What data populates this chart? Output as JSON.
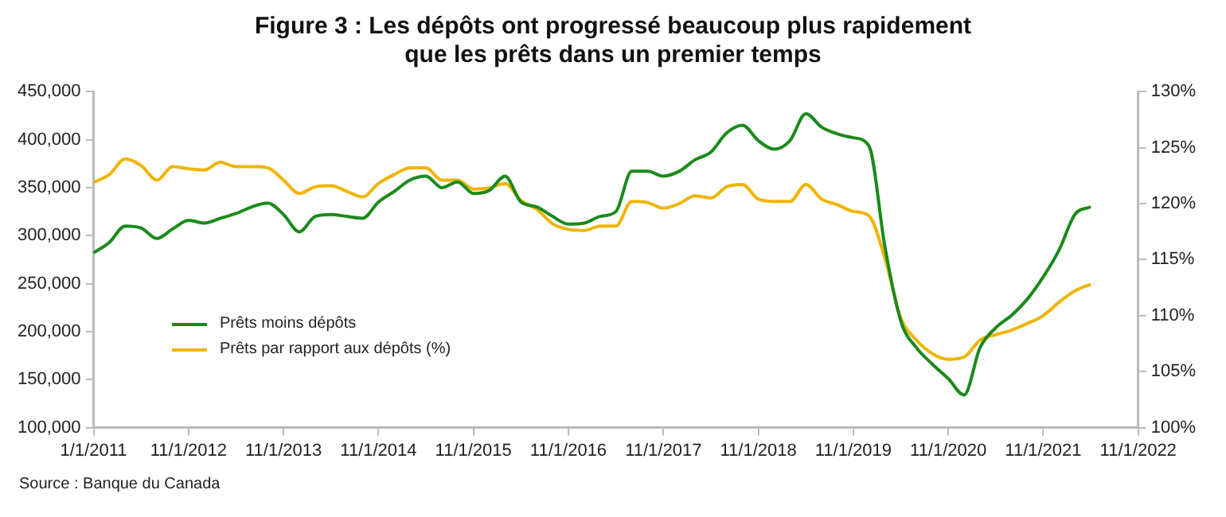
{
  "chart_data": {
    "type": "line",
    "title": "Figure 3 : Les dépôts ont progressé beaucoup plus rapidement que les prêts dans un premier temps",
    "annotations": [
      "Source : Banque du Canada"
    ],
    "categories": [
      "1/1/2011",
      null,
      null,
      null,
      null,
      null,
      "11/1/2012",
      null,
      null,
      null,
      null,
      null,
      "11/1/2013",
      null,
      null,
      null,
      null,
      null,
      "11/1/2014",
      null,
      null,
      null,
      null,
      null,
      "11/1/2015",
      null,
      null,
      null,
      null,
      null,
      "11/1/2016",
      null,
      null,
      null,
      null,
      null,
      "11/1/2017",
      null,
      null,
      null,
      null,
      null,
      "11/1/2018",
      null,
      null,
      null,
      null,
      null,
      "11/1/2019",
      null,
      null,
      null,
      null,
      null,
      "11/1/2020",
      null,
      null,
      null,
      null,
      null,
      "11/1/2021",
      null,
      null,
      null,
      null,
      null,
      "11/1/2022"
    ],
    "series": [
      {
        "name": "Prêts moins dépôts",
        "color": "#1a8a1a",
        "values": [
          282000,
          293000,
          310000,
          308000,
          297000,
          307000,
          316000,
          313000,
          318000,
          323000,
          330000,
          334000,
          322000,
          304000,
          320000,
          322000,
          320000,
          318000,
          335000,
          346000,
          358000,
          362000,
          350000,
          356000,
          344000,
          347000,
          362000,
          335000,
          330000,
          320000,
          312000,
          313000,
          320000,
          325000,
          367000,
          367000,
          362000,
          367000,
          379000,
          387000,
          407000,
          415000,
          399000,
          390000,
          399000,
          427000,
          413000,
          406000,
          402000,
          393000,
          288000,
          211000,
          183000,
          166000,
          151000,
          134000,
          183000,
          204000,
          217000,
          234000,
          257000,
          285000,
          322000,
          330000,
          null,
          null,
          null
        ]
      },
      {
        "name": "Prêts par rapport aux dépôts (%)",
        "color": "#f0b400",
        "axis": "y2",
        "values": [
          121.9,
          122.6,
          124.0,
          123.4,
          122.1,
          123.3,
          123.1,
          123.0,
          123.7,
          123.3,
          123.3,
          123.2,
          122.1,
          120.9,
          121.5,
          121.6,
          121.1,
          120.6,
          121.8,
          122.6,
          123.2,
          123.2,
          122.1,
          122.1,
          121.3,
          121.4,
          121.8,
          120.3,
          119.5,
          118.2,
          117.7,
          117.6,
          118.0,
          118.0,
          120.2,
          120.1,
          119.6,
          120.0,
          120.7,
          120.5,
          121.5,
          121.7,
          120.4,
          120.2,
          120.2,
          121.7,
          120.4,
          119.9,
          119.3,
          118.9,
          115.1,
          109.8,
          107.8,
          106.6,
          106.1,
          106.3,
          107.8,
          108.3,
          108.7,
          109.3,
          110.0,
          111.2,
          112.2,
          112.8,
          null,
          null,
          null
        ]
      }
    ],
    "ylim": [
      100000,
      450000
    ],
    "yticks": [
      {
        "value": 100000,
        "label": "100,000"
      },
      {
        "value": 150000,
        "label": "150,000"
      },
      {
        "value": 200000,
        "label": "200,000"
      },
      {
        "value": 250000,
        "label": "250,000"
      },
      {
        "value": 300000,
        "label": "300,000"
      },
      {
        "value": 350000,
        "label": "350,000"
      },
      {
        "value": 400000,
        "label": "400,000"
      },
      {
        "value": 450000,
        "label": "450,000"
      }
    ],
    "y2lim": [
      100,
      130
    ],
    "y2ticks": [
      {
        "value": 100,
        "label": "100%"
      },
      {
        "value": 105,
        "label": "105%"
      },
      {
        "value": 110,
        "label": "110%"
      },
      {
        "value": 115,
        "label": "115%"
      },
      {
        "value": 120,
        "label": "120%"
      },
      {
        "value": 125,
        "label": "125%"
      },
      {
        "value": 130,
        "label": "130%"
      }
    ],
    "grid": false,
    "legend": "bottom left",
    "marker": "none",
    "line_style": "solid"
  }
}
